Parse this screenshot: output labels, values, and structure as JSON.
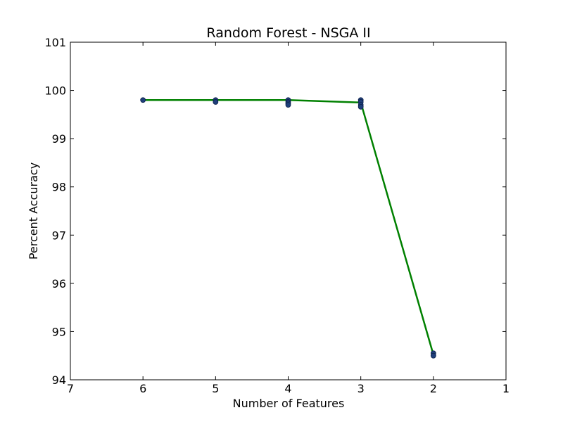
{
  "chart_data": {
    "type": "line",
    "title": "Random Forest - NSGA II",
    "xlabel": "Number of Features",
    "ylabel": "Percent Accuracy",
    "xlim": [
      7,
      1
    ],
    "ylim": [
      94,
      101
    ],
    "x_ticks": [
      7,
      6,
      5,
      4,
      3,
      2,
      1
    ],
    "y_ticks": [
      94,
      95,
      96,
      97,
      98,
      99,
      100,
      101
    ],
    "grid": false,
    "legend": "none",
    "series": [
      {
        "style": "line",
        "color": "#008000",
        "x": [
          6,
          5,
          4,
          3,
          2
        ],
        "y": [
          99.8,
          99.8,
          99.8,
          99.75,
          94.52
        ]
      },
      {
        "style": "scatter",
        "color": "#1f3f7a",
        "x": [
          6,
          5,
          5,
          4,
          4,
          4,
          4,
          3,
          3,
          3,
          3,
          2,
          2
        ],
        "y": [
          99.8,
          99.8,
          99.76,
          99.8,
          99.76,
          99.73,
          99.7,
          99.8,
          99.76,
          99.7,
          99.66,
          94.55,
          94.5
        ]
      }
    ]
  }
}
